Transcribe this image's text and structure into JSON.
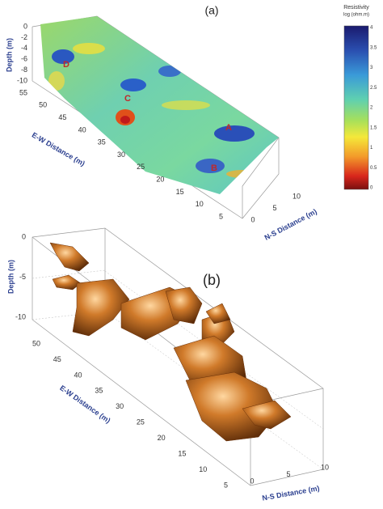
{
  "panels": [
    {
      "label": "(a)",
      "depth_axis": {
        "label": "Depth (m)",
        "ticks": [
          0,
          -2,
          -4,
          -6,
          -8,
          -10
        ]
      },
      "ew_axis": {
        "label": "E-W Distance (m)",
        "ticks": [
          55,
          50,
          45,
          40,
          35,
          30,
          25,
          20,
          15,
          10,
          5
        ]
      },
      "ns_axis": {
        "label": "N-S Distance (m)",
        "ticks": [
          0,
          5,
          10
        ]
      },
      "annotations": [
        "A",
        "B",
        "C",
        "D"
      ]
    },
    {
      "label": "(b)",
      "depth_axis": {
        "label": "Depth (m)",
        "ticks": [
          0,
          -5,
          -10
        ]
      },
      "ew_axis": {
        "label": "E-W Distance (m)",
        "ticks": [
          50,
          45,
          40,
          35,
          30,
          25,
          20,
          15,
          10,
          5
        ]
      },
      "ns_axis": {
        "label": "N-S Distance (m)",
        "ticks": [
          0,
          5,
          10
        ]
      }
    }
  ],
  "colorbar": {
    "title": "Resistivity",
    "unit": "log (ohm.m)",
    "ticks": [
      4,
      3.5,
      3,
      2.5,
      2,
      1.5,
      1,
      0.5,
      0
    ]
  }
}
